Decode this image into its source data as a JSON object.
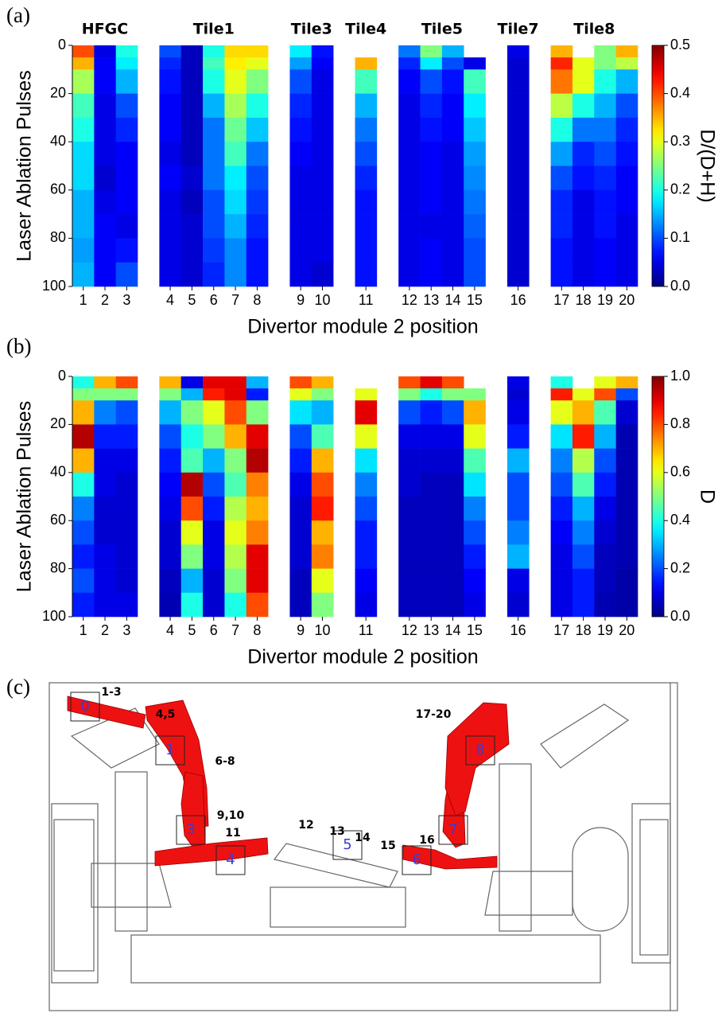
{
  "chart_data": [
    {
      "type": "heatmap",
      "panel_label": "(a)",
      "x_label": "Divertor module 2 position",
      "y_label": "Laser Ablation Pulses",
      "categories": [
        1,
        2,
        3,
        4,
        5,
        6,
        7,
        8,
        9,
        10,
        11,
        12,
        13,
        14,
        15,
        16,
        17,
        18,
        19,
        20
      ],
      "groups": [
        {
          "name": "HFGC",
          "columns": [
            1,
            2,
            3
          ]
        },
        {
          "name": "Tile1",
          "columns": [
            4,
            5,
            6,
            7,
            8
          ]
        },
        {
          "name": "Tile3",
          "columns": [
            9,
            10
          ]
        },
        {
          "name": "Tile4",
          "columns": [
            11
          ]
        },
        {
          "name": "Tile5",
          "columns": [
            12,
            13,
            14,
            15
          ]
        },
        {
          "name": "Tile7",
          "columns": [
            16
          ]
        },
        {
          "name": "Tile8",
          "columns": [
            17,
            18,
            19,
            20
          ]
        }
      ],
      "y": [
        0,
        5,
        10,
        20,
        30,
        40,
        50,
        60,
        70,
        80,
        90,
        100
      ],
      "ylim": [
        0,
        100
      ],
      "y_inverted": true,
      "yticks": [
        0,
        20,
        40,
        60,
        80,
        100
      ],
      "values": [
        [
          0.4,
          0.35,
          0.27,
          0.22,
          0.2,
          0.17,
          0.17,
          0.15,
          0.15,
          0.14,
          0.15
        ],
        [
          0.05,
          0.06,
          0.06,
          0.05,
          0.05,
          0.05,
          0.04,
          0.05,
          0.06,
          0.06,
          0.06
        ],
        [
          0.2,
          0.18,
          0.15,
          0.1,
          0.08,
          0.06,
          0.06,
          0.06,
          0.05,
          0.07,
          0.1
        ],
        [
          0.1,
          0.08,
          0.07,
          0.06,
          0.06,
          0.05,
          0.06,
          0.05,
          0.05,
          0.05,
          0.05
        ],
        [
          0.03,
          0.03,
          0.03,
          0.03,
          0.03,
          0.03,
          0.04,
          0.03,
          0.04,
          0.04,
          0.04
        ],
        [
          0.2,
          0.22,
          0.2,
          0.15,
          0.12,
          0.12,
          0.12,
          0.1,
          0.1,
          0.09,
          0.08
        ],
        [
          0.33,
          0.32,
          0.3,
          0.27,
          0.24,
          0.22,
          0.18,
          0.17,
          0.15,
          0.13,
          0.13
        ],
        [
          0.33,
          0.3,
          0.25,
          0.2,
          0.16,
          0.12,
          0.1,
          0.09,
          0.08,
          0.07,
          0.07
        ],
        [
          0.18,
          0.14,
          0.1,
          0.08,
          0.07,
          0.06,
          0.05,
          0.05,
          0.05,
          0.05,
          0.05
        ],
        [
          0.07,
          0.06,
          0.05,
          0.05,
          0.05,
          0.05,
          0.05,
          0.05,
          0.05,
          0.05,
          0.04
        ],
        [
          null,
          0.35,
          0.22,
          0.15,
          0.12,
          0.1,
          0.08,
          0.07,
          0.07,
          0.07,
          0.07
        ],
        [
          0.12,
          0.08,
          0.06,
          0.05,
          0.05,
          0.05,
          0.05,
          0.05,
          0.05,
          0.05,
          0.05
        ],
        [
          0.25,
          0.18,
          0.1,
          0.08,
          0.07,
          0.06,
          0.06,
          0.06,
          0.05,
          0.06,
          0.06
        ],
        [
          0.15,
          0.1,
          0.07,
          0.06,
          0.06,
          0.05,
          0.05,
          0.05,
          0.05,
          0.05,
          0.05
        ],
        [
          null,
          0.05,
          0.22,
          0.18,
          0.16,
          0.14,
          0.13,
          0.12,
          0.11,
          0.1,
          0.1
        ],
        [
          0.05,
          0.04,
          0.04,
          0.04,
          0.04,
          0.04,
          0.04,
          0.04,
          0.04,
          0.04,
          0.04
        ],
        [
          0.35,
          0.42,
          0.38,
          0.28,
          0.2,
          0.14,
          0.1,
          0.08,
          0.08,
          0.07,
          0.07
        ],
        [
          null,
          0.3,
          0.3,
          0.2,
          0.12,
          0.08,
          0.07,
          0.05,
          0.05,
          0.05,
          0.05
        ],
        [
          0.25,
          0.25,
          0.2,
          0.15,
          0.12,
          0.1,
          0.08,
          0.07,
          0.07,
          0.06,
          0.06
        ],
        [
          0.35,
          0.28,
          0.15,
          0.1,
          0.08,
          0.07,
          0.06,
          0.06,
          0.05,
          0.05,
          0.05
        ]
      ],
      "zlim": [
        0,
        0.5
      ],
      "zticks": [
        {
          "value": 0,
          "label": "0.0"
        },
        0.1,
        0.2,
        0.3,
        0.4,
        0.5
      ],
      "zlabel": "D/(D+H)",
      "colormap": "jet"
    },
    {
      "type": "heatmap",
      "panel_label": "(b)",
      "x_label": "Divertor module 2 position",
      "y_label": "Laser Ablation Pulses",
      "categories": [
        1,
        2,
        3,
        4,
        5,
        6,
        7,
        8,
        9,
        10,
        11,
        12,
        13,
        14,
        15,
        16,
        17,
        18,
        19,
        20
      ],
      "y": [
        0,
        5,
        10,
        20,
        30,
        40,
        50,
        60,
        70,
        80,
        90,
        100
      ],
      "ylim": [
        0,
        100
      ],
      "y_inverted": true,
      "yticks": [
        0,
        20,
        40,
        60,
        80,
        100
      ],
      "values": [
        [
          0.4,
          0.5,
          0.7,
          0.95,
          0.7,
          0.4,
          0.25,
          0.2,
          0.15,
          0.2,
          0.15
        ],
        [
          0.7,
          0.5,
          0.25,
          0.15,
          0.1,
          0.1,
          0.08,
          0.08,
          0.1,
          0.1,
          0.1
        ],
        [
          0.8,
          0.5,
          0.2,
          0.15,
          0.1,
          0.08,
          0.08,
          0.08,
          0.08,
          0.08,
          0.1
        ],
        [
          0.7,
          0.5,
          0.3,
          0.2,
          0.15,
          0.12,
          0.1,
          0.08,
          0.08,
          0.06,
          0.05
        ],
        [
          0.1,
          0.3,
          0.5,
          0.4,
          0.45,
          0.95,
          0.8,
          0.6,
          0.5,
          0.3,
          0.4
        ],
        [
          0.9,
          0.85,
          0.6,
          0.5,
          0.3,
          0.2,
          0.15,
          0.1,
          0.1,
          0.08,
          0.08
        ],
        [
          0.9,
          0.9,
          0.8,
          0.7,
          0.5,
          0.45,
          0.55,
          0.6,
          0.55,
          0.5,
          0.4
        ],
        [
          0.3,
          0.15,
          0.5,
          0.9,
          0.95,
          0.75,
          0.7,
          0.75,
          0.9,
          0.9,
          0.8
        ],
        [
          0.8,
          0.6,
          0.35,
          0.2,
          0.15,
          0.1,
          0.08,
          0.08,
          0.08,
          0.06,
          0.06
        ],
        [
          0.7,
          0.5,
          0.3,
          0.45,
          0.7,
          0.8,
          0.85,
          0.7,
          0.75,
          0.6,
          0.5
        ],
        [
          null,
          0.6,
          0.9,
          0.6,
          0.35,
          0.25,
          0.2,
          0.15,
          0.15,
          0.12,
          0.1
        ],
        [
          0.8,
          0.5,
          0.2,
          0.1,
          0.08,
          0.08,
          0.06,
          0.06,
          0.06,
          0.06,
          0.06
        ],
        [
          0.9,
          0.4,
          0.15,
          0.1,
          0.08,
          0.06,
          0.06,
          0.06,
          0.06,
          0.06,
          0.06
        ],
        [
          0.8,
          0.5,
          0.2,
          0.1,
          0.08,
          0.06,
          0.06,
          0.06,
          0.06,
          0.06,
          0.06
        ],
        [
          null,
          0.5,
          0.7,
          0.6,
          0.45,
          0.35,
          0.25,
          0.2,
          0.15,
          0.12,
          0.1
        ],
        [
          0.1,
          0.08,
          0.1,
          0.15,
          0.3,
          0.2,
          0.2,
          0.25,
          0.3,
          0.1,
          0.08
        ],
        [
          0.4,
          0.85,
          0.6,
          0.35,
          0.25,
          0.2,
          0.15,
          0.12,
          0.1,
          0.1,
          0.1
        ],
        [
          null,
          0.6,
          0.7,
          0.85,
          0.55,
          0.45,
          0.3,
          0.25,
          0.2,
          0.15,
          0.15
        ],
        [
          0.6,
          0.8,
          0.45,
          0.3,
          0.2,
          0.15,
          0.1,
          0.08,
          0.06,
          0.06,
          0.05
        ],
        [
          0.7,
          0.2,
          0.08,
          0.05,
          0.05,
          0.05,
          0.05,
          0.05,
          0.05,
          0.04,
          0.04
        ]
      ],
      "zlim": [
        0,
        1
      ],
      "zticks": [
        {
          "value": 0,
          "label": "0.0"
        },
        0.2,
        0.4,
        0.6,
        0.8,
        {
          "value": 1,
          "label": "1.0"
        }
      ],
      "zlabel": "D",
      "colormap": "jet"
    }
  ],
  "diagram": {
    "panel_label": "(c)",
    "tiles": [
      "0",
      "1",
      "3",
      "4",
      "5",
      "6",
      "7",
      "8"
    ],
    "positions": [
      "1-3",
      "4,5",
      "6-8",
      "9,10",
      "11",
      "12",
      "13",
      "14",
      "15",
      "16",
      "17-20"
    ]
  }
}
